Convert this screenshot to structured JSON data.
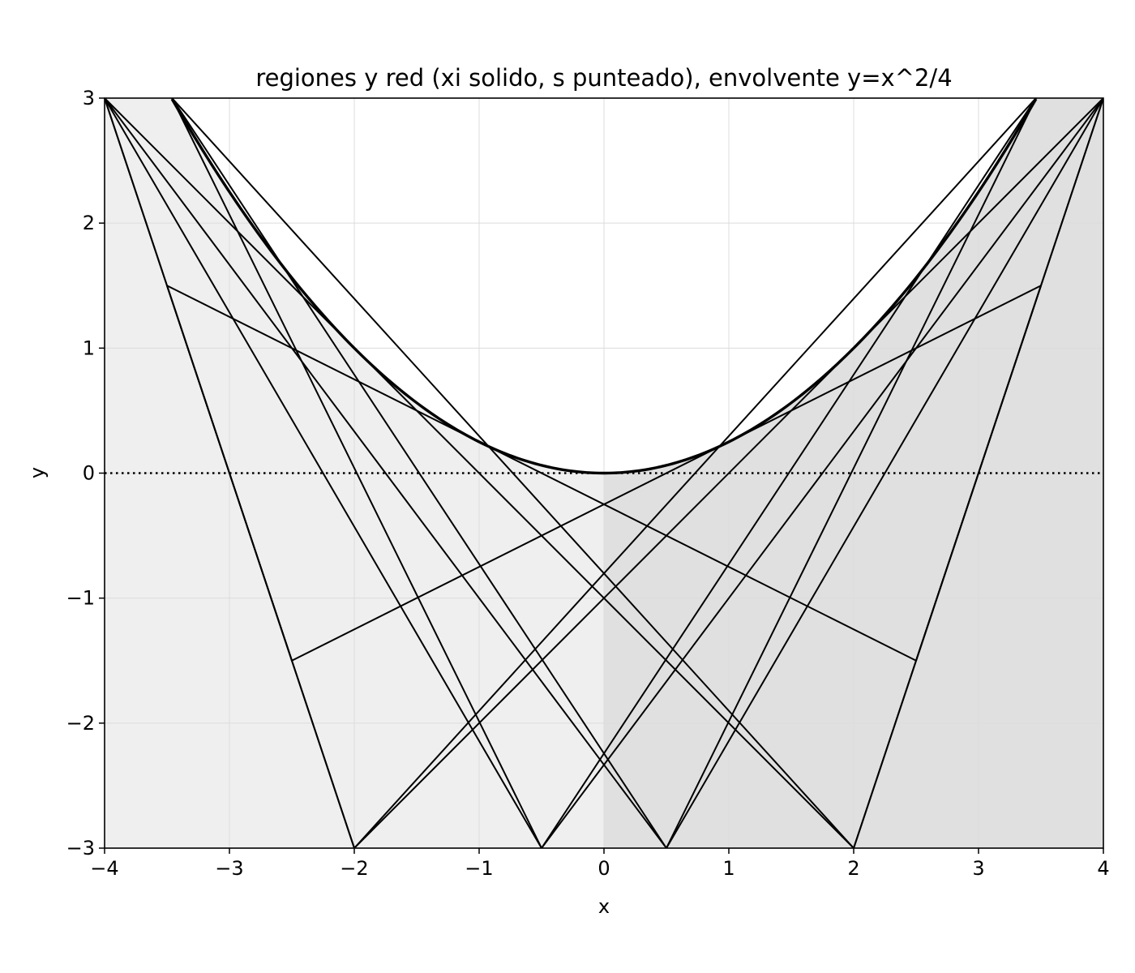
{
  "chart_data": {
    "type": "line",
    "title": "regiones y red (xi solido, s punteado), envolvente y=x^2/4",
    "xlabel": "x",
    "ylabel": "y",
    "xlim": [
      -4,
      4
    ],
    "ylim": [
      -3,
      3
    ],
    "xticks": [
      -4,
      -3,
      -2,
      -1,
      0,
      1,
      2,
      3,
      4
    ],
    "yticks": [
      -3,
      -2,
      -1,
      0,
      1,
      2,
      3
    ],
    "xtick_labels": [
      "−4",
      "−3",
      "−2",
      "−1",
      "0",
      "1",
      "2",
      "3",
      "4"
    ],
    "ytick_labels": [
      "−3",
      "−2",
      "−1",
      "0",
      "1",
      "2",
      "3"
    ],
    "grid": true,
    "regions": [
      {
        "x_range": [
          -4,
          0
        ],
        "color": "#efefef"
      },
      {
        "x_range": [
          0,
          4
        ],
        "color": "#e0e0e0"
      }
    ],
    "envelope": {
      "formula": "y=x^2/4",
      "x_range": [
        -3.46,
        3.46
      ]
    },
    "baseline": {
      "y": 0,
      "style": "dotted"
    },
    "xi_lines": [
      {
        "xi": -2,
        "points": [
          [
            -4,
            3
          ],
          [
            -2,
            -3
          ]
        ]
      },
      {
        "xi": -1,
        "points": [
          [
            -4,
            3
          ],
          [
            -0.5,
            -3
          ]
        ]
      },
      {
        "xi": -0.5,
        "points": [
          [
            -4,
            3
          ],
          [
            0.5,
            -3
          ]
        ]
      },
      {
        "xi": 0.5,
        "points": [
          [
            -4,
            3
          ],
          [
            2,
            -3
          ]
        ]
      },
      {
        "xi": -3.46,
        "points": [
          [
            -3.46,
            3
          ],
          [
            -0.5,
            -3
          ]
        ]
      },
      {
        "xi": -3.46,
        "points": [
          [
            -3.46,
            3
          ],
          [
            0.5,
            -3
          ]
        ]
      },
      {
        "xi": -3,
        "points": [
          [
            -3.46,
            3
          ],
          [
            2,
            -3
          ]
        ]
      },
      {
        "xi": 3.46,
        "points": [
          [
            3.46,
            3
          ],
          [
            0.5,
            -3
          ]
        ]
      },
      {
        "xi": 3.46,
        "points": [
          [
            3.46,
            3
          ],
          [
            -0.5,
            -3
          ]
        ]
      },
      {
        "xi": 3,
        "points": [
          [
            3.46,
            3
          ],
          [
            -2,
            -3
          ]
        ]
      },
      {
        "xi": -0.5,
        "points": [
          [
            4,
            3
          ],
          [
            -2,
            -3
          ]
        ]
      },
      {
        "xi": 1,
        "points": [
          [
            4,
            3
          ],
          [
            -0.5,
            -3
          ]
        ]
      },
      {
        "xi": 2,
        "points": [
          [
            4,
            3
          ],
          [
            2,
            -3
          ]
        ]
      },
      {
        "xi": 0.5,
        "points": [
          [
            4,
            3
          ],
          [
            0.5,
            -3
          ]
        ]
      }
    ],
    "s_lines": [
      {
        "s": 1.5,
        "points": [
          [
            -3.5,
            1.5
          ],
          [
            2.5,
            -1.5
          ]
        ]
      },
      {
        "s": -1.5,
        "points": [
          [
            -2.5,
            -1.5
          ],
          [
            3.5,
            1.5
          ]
        ]
      },
      {
        "s": 3.5,
        "points": [
          [
            -3.5,
            1.5
          ],
          [
            -2,
            -3
          ]
        ]
      },
      {
        "s": -3.5,
        "points": [
          [
            -2.5,
            -1.5
          ],
          [
            -4,
            3
          ]
        ]
      },
      {
        "s": 2.5,
        "points": [
          [
            2.5,
            -1.5
          ],
          [
            4,
            3
          ]
        ]
      },
      {
        "s": -2.5,
        "points": [
          [
            3.5,
            1.5
          ],
          [
            2,
            -3
          ]
        ]
      }
    ]
  }
}
